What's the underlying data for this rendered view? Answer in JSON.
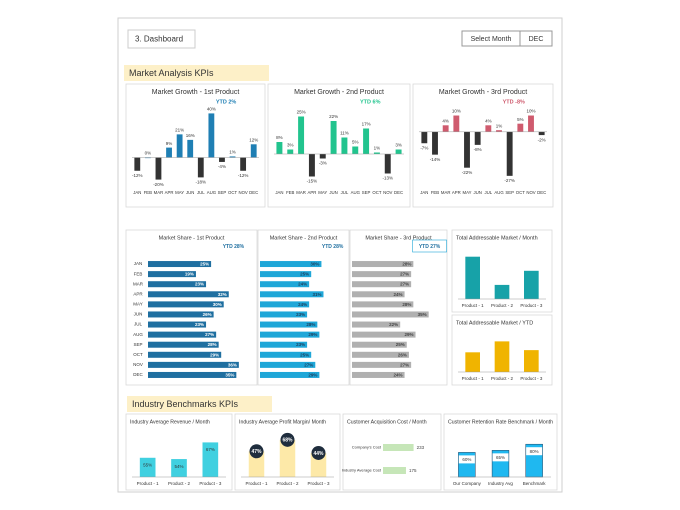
{
  "header": {
    "title": "3. Dashboard",
    "select_label": "Select Month",
    "month": "DEC"
  },
  "sections": [
    "Market Analysis KPIs",
    "Industry Benchmarks KPIs"
  ],
  "chart_data": [
    {
      "type": "bar",
      "title": "Market Growth - 1st Product",
      "ytd": "YTD 2%",
      "categories": [
        "JAN",
        "FEB",
        "MAR",
        "APR",
        "MAY",
        "JUN",
        "JUL",
        "AUG",
        "SEP",
        "OCT",
        "NOV",
        "DEC"
      ],
      "values": [
        -12,
        0,
        -20,
        9,
        21,
        16,
        -18,
        40,
        -4,
        1,
        -12,
        12
      ],
      "value_labels": [
        "-12%",
        "0%",
        "-20%",
        "9%",
        "21%",
        "16%",
        "-18%",
        "40%",
        "-4%",
        "1%",
        "-12%",
        "12%"
      ],
      "color": "#1f7fb4",
      "negative_color": "#333333",
      "ylim": [
        -24,
        44
      ],
      "label_position": "outside"
    },
    {
      "type": "bar",
      "title": "Market Growth - 2nd Product",
      "ytd": "YTD 6%",
      "categories": [
        "JAN",
        "FEB",
        "MAR",
        "APR",
        "MAY",
        "JUN",
        "JUL",
        "AUG",
        "SEP",
        "OCT",
        "NOV",
        "DEC"
      ],
      "values": [
        8,
        3,
        25,
        -15,
        -3,
        22,
        11,
        5,
        17,
        1,
        -13,
        3
      ],
      "value_labels": [
        "8%",
        "3%",
        "25%",
        "-15%",
        "-3%",
        "22%",
        "11%",
        "5%",
        "17%",
        "1%",
        "-13%",
        "3%"
      ],
      "color": "#22c48e",
      "negative_color": "#333333",
      "ylim": [
        -20,
        30
      ],
      "label_position": "outside"
    },
    {
      "type": "bar",
      "title": "Market Growth - 3rd Product",
      "ytd": "YTD -8%",
      "categories": [
        "JAN",
        "FEB",
        "MAR",
        "APR",
        "MAY",
        "JUN",
        "JUL",
        "AUG",
        "SEP",
        "OCT",
        "NOV",
        "DEC"
      ],
      "values": [
        -7,
        -14,
        4,
        10,
        -22,
        -8,
        4,
        1,
        -27,
        5,
        10,
        -2
      ],
      "value_labels": [
        "-7%",
        "-14%",
        "4%",
        "10%",
        "-22%",
        "-8%",
        "4%",
        "1%",
        "-27%",
        "5%",
        "10%",
        "-2%"
      ],
      "color": "#cf5b6e",
      "negative_color": "#333333",
      "ylim": [
        -32,
        14
      ],
      "label_position": "outside"
    },
    {
      "type": "hbar",
      "title": "Market Share - 1st Product",
      "ytd": "YTD 28%",
      "categories": [
        "JAN",
        "FEB",
        "MAR",
        "APR",
        "MAY",
        "JUN",
        "JUL",
        "AUG",
        "SEP",
        "OCT",
        "NOV",
        "DEC"
      ],
      "values": [
        25,
        19,
        23,
        32,
        30,
        26,
        23,
        27,
        28,
        29,
        36,
        35
      ],
      "value_labels": [
        "25%",
        "19%",
        "23%",
        "32%",
        "30%",
        "26%",
        "23%",
        "27%",
        "28%",
        "29%",
        "36%",
        "35%"
      ],
      "color": "#1f6fa0",
      "label_color": "#ffffff",
      "xlim": [
        0,
        42
      ]
    },
    {
      "type": "hbar",
      "title": "Market Share - 2nd Product",
      "ytd": "YTD 28%",
      "values": [
        30,
        25,
        24,
        31,
        24,
        23,
        28,
        29,
        23,
        25,
        27,
        29
      ],
      "value_labels": [
        "30%",
        "25%",
        "24%",
        "31%",
        "24%",
        "23%",
        "28%",
        "29%",
        "23%",
        "25%",
        "27%",
        "29%"
      ],
      "color": "#1fa7d8",
      "label_color": "#1a3d5c",
      "xlim": [
        0,
        42
      ]
    },
    {
      "type": "hbar",
      "title": "Market Share - 3rd Product",
      "ytd": "YTD 27%",
      "values": [
        28,
        27,
        27,
        24,
        28,
        35,
        22,
        29,
        25,
        26,
        27,
        24
      ],
      "value_labels": [
        "28%",
        "27%",
        "27%",
        "24%",
        "28%",
        "35%",
        "22%",
        "29%",
        "25%",
        "26%",
        "27%",
        "24%"
      ],
      "color": "#b0b0b0",
      "label_color": "#444444",
      "xlim": [
        0,
        42
      ]
    },
    {
      "type": "bar",
      "title": "Total Addressable Market / Month",
      "categories": [
        "Product - 1",
        "Product - 2",
        "Product - 3"
      ],
      "values": [
        45,
        15,
        30
      ],
      "color": "#17a2a8",
      "ylim": [
        0,
        50
      ]
    },
    {
      "type": "bar",
      "title": "Total Addressable Market / YTD",
      "categories": [
        "Product - 1",
        "Product - 2",
        "Product - 3"
      ],
      "values": [
        18,
        28,
        20
      ],
      "color": "#f0b400",
      "ylim": [
        0,
        32
      ]
    },
    {
      "type": "bar",
      "title": "Industry Average Revenue / Month",
      "categories": [
        "Product - 1",
        "Product - 2",
        "Product - 3"
      ],
      "values": [
        55,
        54,
        67
      ],
      "value_labels": [
        "55%",
        "54%",
        "67%"
      ],
      "color": "#40d0e0",
      "ylim": [
        40,
        72
      ],
      "label_position": "inside"
    },
    {
      "type": "bar",
      "title": "Industry Average Profit Margin/ Month",
      "categories": [
        "Product - 1",
        "Product - 2",
        "Product - 3"
      ],
      "values": [
        47,
        68,
        44
      ],
      "value_labels": [
        "47%",
        "68%",
        "44%"
      ],
      "color": "#fde9a8",
      "ylim": [
        0,
        75
      ],
      "label_position": "circle"
    },
    {
      "type": "hbar",
      "title": "Customer Acquisition Cost  / Month",
      "categories": [
        "Company's Cost",
        "Industry Average Cost"
      ],
      "values": [
        233,
        175
      ],
      "value_labels": [
        "233",
        "175"
      ],
      "color": "#c6e6b8",
      "label_color": "#444444",
      "xlim": [
        0,
        320
      ],
      "label_position": "outside"
    },
    {
      "type": "bar",
      "title": "Customer Retention Rate Benchmark / Month",
      "categories": [
        "Our Company",
        "Industry Avg",
        "Benchmark"
      ],
      "values": [
        60,
        65,
        80
      ],
      "value_labels": [
        "60%",
        "65%",
        "80%"
      ],
      "color": "#1fb8f0",
      "ylim": [
        0,
        100
      ],
      "label_position": "inside"
    }
  ]
}
